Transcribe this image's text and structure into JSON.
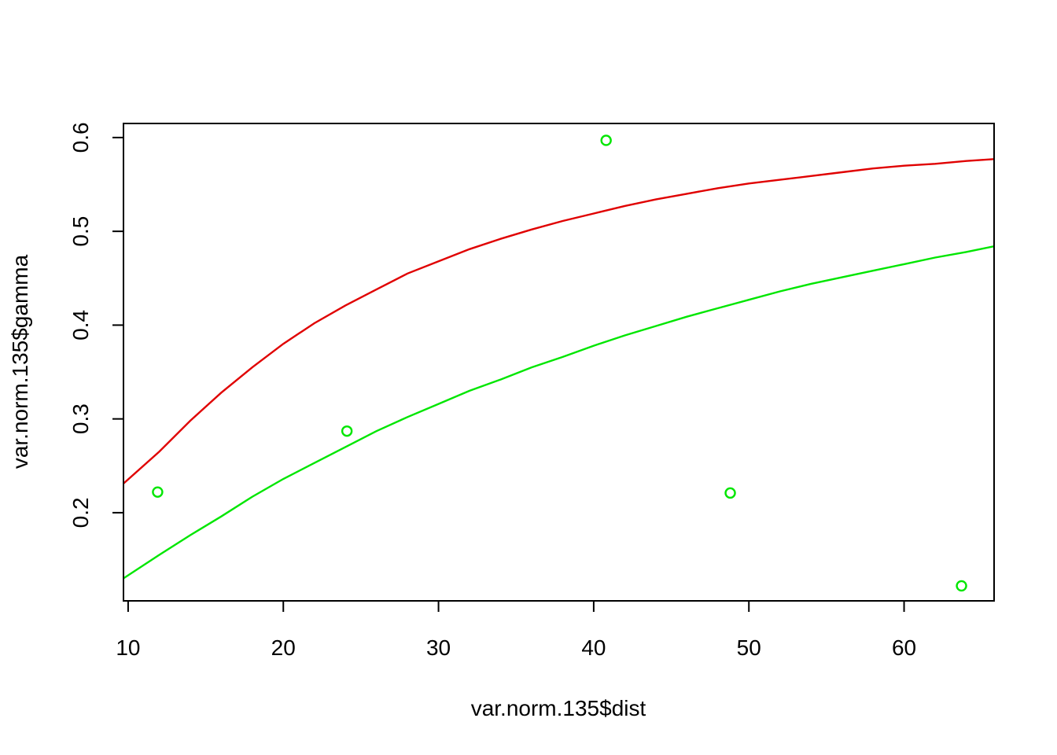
{
  "chart_data": {
    "type": "scatter",
    "title": "",
    "xlabel": "var.norm.135$dist",
    "ylabel": "var.norm.135$gamma",
    "xlim": [
      9.7,
      65.8
    ],
    "ylim": [
      0.106,
      0.615
    ],
    "x_ticks": [
      10,
      20,
      30,
      40,
      50,
      60
    ],
    "y_ticks": [
      0.2,
      0.3,
      0.4,
      0.5,
      0.6
    ],
    "x_tick_labels": [
      "10",
      "20",
      "30",
      "40",
      "50",
      "60"
    ],
    "y_tick_labels": [
      "0.2",
      "0.3",
      "0.4",
      "0.5",
      "0.6"
    ],
    "grid": false,
    "points": {
      "color": "#00E600",
      "x": [
        11.9,
        24.1,
        40.8,
        48.8,
        63.7
      ],
      "y": [
        0.222,
        0.287,
        0.597,
        0.221,
        0.122
      ]
    },
    "curves": [
      {
        "color": "#E00000",
        "x": [
          9.7,
          12,
          14,
          16,
          18,
          20,
          22,
          24,
          26,
          28,
          30,
          32,
          34,
          36,
          38,
          40,
          42,
          44,
          46,
          48,
          50,
          52,
          54,
          56,
          58,
          60,
          62,
          64,
          65.8
        ],
        "y": [
          0.231,
          0.265,
          0.298,
          0.328,
          0.355,
          0.38,
          0.402,
          0.421,
          0.438,
          0.455,
          0.468,
          0.481,
          0.492,
          0.502,
          0.511,
          0.519,
          0.527,
          0.534,
          0.54,
          0.546,
          0.551,
          0.555,
          0.559,
          0.563,
          0.567,
          0.57,
          0.572,
          0.575,
          0.577
        ]
      },
      {
        "color": "#00E600",
        "x": [
          9.7,
          12,
          14,
          16,
          18,
          20,
          22,
          24,
          26,
          28,
          30,
          32,
          34,
          36,
          38,
          40,
          42,
          44,
          46,
          48,
          50,
          52,
          54,
          56,
          58,
          60,
          62,
          64,
          65.8
        ],
        "y": [
          0.13,
          0.155,
          0.176,
          0.196,
          0.217,
          0.236,
          0.253,
          0.27,
          0.287,
          0.302,
          0.316,
          0.33,
          0.342,
          0.355,
          0.366,
          0.378,
          0.389,
          0.399,
          0.409,
          0.418,
          0.427,
          0.436,
          0.444,
          0.451,
          0.458,
          0.465,
          0.472,
          0.478,
          0.484
        ]
      }
    ]
  }
}
